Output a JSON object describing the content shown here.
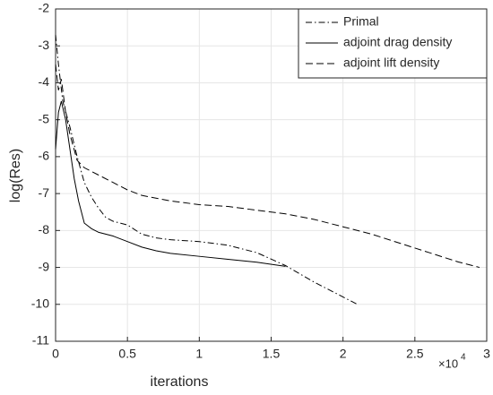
{
  "chart_data": {
    "type": "line",
    "xlabel": "iterations",
    "ylabel": "log(Res)",
    "x_multiplier": "×10",
    "x_multiplier_exponent": "4",
    "xlim": [
      0,
      30000
    ],
    "ylim": [
      -11,
      -2
    ],
    "xticks": [
      0,
      {
        "value": 5000,
        "label": "0.5"
      },
      {
        "value": 10000,
        "label": "1"
      },
      {
        "value": 15000,
        "label": "1.5"
      },
      {
        "value": 20000,
        "label": "2"
      },
      {
        "value": 25000,
        "label": "2.5"
      },
      {
        "value": 30000,
        "label": "3"
      }
    ],
    "yticks": [
      -11,
      -10,
      -9,
      -8,
      -7,
      -6,
      -5,
      -4,
      -3,
      -2
    ],
    "grid": true,
    "legend": "upper right",
    "series": [
      {
        "name": "Primal",
        "color": "#000000",
        "style": "dash-dot",
        "x": [
          0,
          200,
          500,
          1000,
          1500,
          2000,
          2500,
          3000,
          3500,
          4000,
          5000,
          6000,
          7000,
          8000,
          10000,
          12000,
          14000,
          16000,
          18000,
          20000,
          21000
        ],
        "values": [
          -2.7,
          -3.5,
          -4.5,
          -5.2,
          -6.0,
          -6.7,
          -7.1,
          -7.4,
          -7.65,
          -7.75,
          -7.85,
          -8.1,
          -8.2,
          -8.25,
          -8.3,
          -8.4,
          -8.6,
          -8.95,
          -9.4,
          -9.8,
          -10.0
        ]
      },
      {
        "name": "adjoint drag density",
        "color": "#000000",
        "style": "solid",
        "x": [
          0,
          200,
          400,
          700,
          1000,
          1300,
          1600,
          2000,
          2500,
          3000,
          4000,
          5000,
          6000,
          7000,
          8000,
          10000,
          12000,
          14000,
          16000
        ],
        "values": [
          -5.8,
          -4.8,
          -4.5,
          -5.0,
          -5.8,
          -6.6,
          -7.2,
          -7.8,
          -7.95,
          -8.05,
          -8.15,
          -8.3,
          -8.45,
          -8.55,
          -8.62,
          -8.7,
          -8.78,
          -8.86,
          -8.97
        ]
      },
      {
        "name": "adjoint lift density",
        "color": "#000000",
        "style": "dashed",
        "x": [
          0,
          200,
          400,
          700,
          1000,
          1500,
          2000,
          3000,
          4000,
          5000,
          6000,
          8000,
          10000,
          12000,
          14000,
          16000,
          18000,
          20000,
          22000,
          24000,
          26000,
          28000,
          29500
        ],
        "values": [
          -3.5,
          -4.2,
          -3.9,
          -4.8,
          -5.4,
          -6.1,
          -6.3,
          -6.5,
          -6.7,
          -6.9,
          -7.05,
          -7.2,
          -7.3,
          -7.35,
          -7.45,
          -7.55,
          -7.7,
          -7.9,
          -8.1,
          -8.35,
          -8.6,
          -8.85,
          -9.0
        ]
      }
    ]
  }
}
